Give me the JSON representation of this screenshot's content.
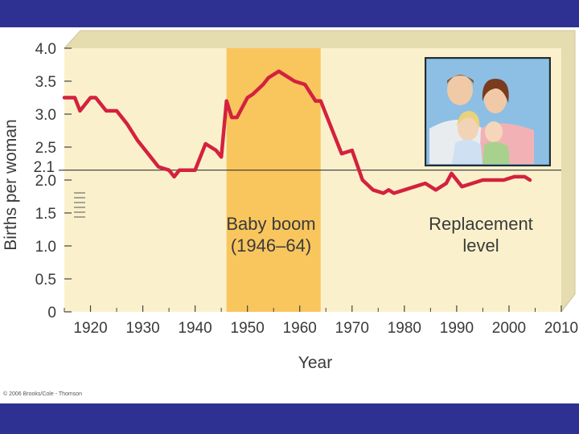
{
  "chart_data": {
    "type": "line",
    "title": "",
    "xlabel": "Year",
    "ylabel": "Births per woman",
    "xlim": [
      1915,
      2010
    ],
    "ylim": [
      0,
      4.0
    ],
    "x_ticks": [
      "1920",
      "1930",
      "1940",
      "1950",
      "1960",
      "1970",
      "1980",
      "1990",
      "2000",
      "2010"
    ],
    "y_ticks": [
      "0",
      "0.5",
      "1.0",
      "1.5",
      "2.0",
      "2.5",
      "3.0",
      "3.5",
      "4.0"
    ],
    "y_extra_label": "2.1",
    "grid": false,
    "series": [
      {
        "x": [
          1915,
          1917,
          1918,
          1920,
          1921,
          1923,
          1925,
          1927,
          1929,
          1931,
          1933,
          1935,
          1936,
          1937,
          1940,
          1942,
          1944,
          1945,
          1946,
          1947,
          1948,
          1950,
          1951,
          1953,
          1954,
          1956,
          1957,
          1959,
          1961,
          1963,
          1964,
          1966,
          1968,
          1970,
          1972,
          1974,
          1976,
          1977,
          1978,
          1980,
          1982,
          1984,
          1986,
          1988,
          1989,
          1991,
          1993,
          1995,
          1997,
          1999,
          2001,
          2003,
          2004
        ],
        "y": [
          3.25,
          3.25,
          3.05,
          3.25,
          3.25,
          3.05,
          3.05,
          2.85,
          2.6,
          2.4,
          2.2,
          2.15,
          2.05,
          2.15,
          2.15,
          2.55,
          2.45,
          2.35,
          3.2,
          2.95,
          2.95,
          3.25,
          3.3,
          3.45,
          3.55,
          3.65,
          3.6,
          3.5,
          3.45,
          3.2,
          3.2,
          2.8,
          2.4,
          2.45,
          2.0,
          1.85,
          1.8,
          1.85,
          1.8,
          1.85,
          1.9,
          1.95,
          1.85,
          1.95,
          2.1,
          1.9,
          1.95,
          2.0,
          2.0,
          2.0,
          2.05,
          2.05,
          2.0
        ]
      }
    ],
    "reference_line": {
      "y": 2.1,
      "label": "Replacement level"
    },
    "shaded_region": {
      "x": [
        1946,
        1964
      ],
      "label_line1": "Baby boom",
      "label_line2": "(1946–64)",
      "color": "#f9c65e"
    },
    "line_color": "#d4213e",
    "panel_color": "#faf1cc"
  },
  "photo": {
    "icon": "family-photo"
  },
  "credit": "© 2006 Brooks/Cole - Thomson"
}
